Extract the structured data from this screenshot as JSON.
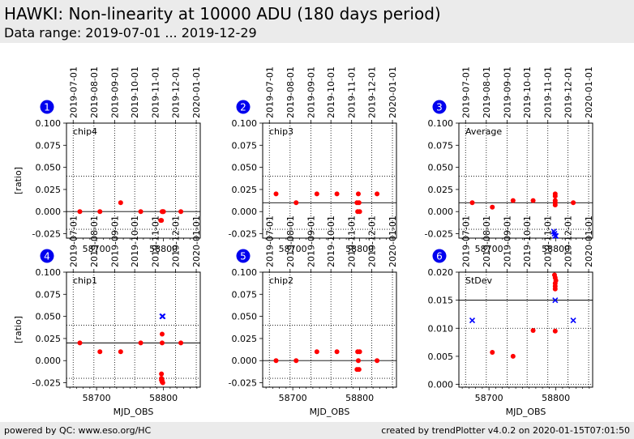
{
  "header": {
    "title": "HAWKI: Non-linearity at 10000 ADU (180 days period)",
    "subtitle": "Data range: 2019-07-01 ... 2019-12-29",
    "bg_color": "#ebebeb"
  },
  "footer": {
    "left": "powered by QC: www.eso.org/HC",
    "right": "created by trendPlotter v4.0.2 on 2020-01-15T07:01:50"
  },
  "colors": {
    "point": "#ff0000",
    "outlier": "#0000ff",
    "badge": "#0000ee"
  },
  "date_ticks": {
    "labels": [
      "2019-07-01",
      "2019-08-01",
      "2019-09-01",
      "2019-10-01",
      "2019-11-01",
      "2019-12-01",
      "2020-01-01"
    ],
    "mjd": [
      58665,
      58696,
      58727,
      58757,
      58788,
      58818,
      58849
    ]
  },
  "chart_data": [
    {
      "type": "scatter",
      "panel": "1",
      "label": "chip4",
      "ylabel": "[ratio]",
      "xlabel": "",
      "xlim": [
        58655,
        58855
      ],
      "ylim": [
        -0.03,
        0.1
      ],
      "yticks": [
        -0.025,
        0.0,
        0.025,
        0.05,
        0.075,
        0.1
      ],
      "yticklabels": [
        "-0.025",
        "0.000",
        "0.025",
        "0.050",
        "0.075",
        "0.100"
      ],
      "xticks": [
        58700,
        58800
      ],
      "xticklabels": [
        "58700",
        "58800"
      ],
      "ref_line": 0.0,
      "limit_lines": [
        0.04,
        -0.02
      ],
      "points": [
        [
          58675,
          0.0
        ],
        [
          58705,
          0.0
        ],
        [
          58736,
          0.01
        ],
        [
          58766,
          0.0
        ],
        [
          58796,
          -0.01
        ],
        [
          58797,
          -0.01
        ],
        [
          58798,
          0.0
        ],
        [
          58799,
          0.0
        ],
        [
          58800,
          0.0
        ],
        [
          58826,
          0.0
        ]
      ],
      "outliers": []
    },
    {
      "type": "scatter",
      "panel": "2",
      "label": "chip3",
      "ylabel": "",
      "xlabel": "",
      "xlim": [
        58655,
        58855
      ],
      "ylim": [
        -0.03,
        0.1
      ],
      "yticks": [
        -0.025,
        0.0,
        0.025,
        0.05,
        0.075,
        0.1
      ],
      "yticklabels": [
        "-0.025",
        "0.000",
        "0.025",
        "0.050",
        "0.075",
        "0.100"
      ],
      "xticks": [
        58700,
        58800
      ],
      "xticklabels": [
        "58700",
        "58800"
      ],
      "ref_line": 0.01,
      "limit_lines": [
        0.04,
        -0.02
      ],
      "points": [
        [
          58675,
          0.02
        ],
        [
          58705,
          0.01
        ],
        [
          58736,
          0.02
        ],
        [
          58766,
          0.02
        ],
        [
          58796,
          0.01
        ],
        [
          58797,
          0.0
        ],
        [
          58798,
          0.02
        ],
        [
          58799,
          0.01
        ],
        [
          58800,
          0.0
        ],
        [
          58826,
          0.02
        ]
      ],
      "outliers": []
    },
    {
      "type": "scatter",
      "panel": "3",
      "label": "Average",
      "ylabel": "",
      "xlabel": "",
      "xlim": [
        58655,
        58855
      ],
      "ylim": [
        -0.03,
        0.1
      ],
      "yticks": [
        -0.025,
        0.0,
        0.025,
        0.05,
        0.075,
        0.1
      ],
      "yticklabels": [
        "-0.025",
        "0.000",
        "0.025",
        "0.050",
        "0.075",
        "0.100"
      ],
      "xticks": [
        58700,
        58800
      ],
      "xticklabels": [
        "58700",
        "58800"
      ],
      "ref_line": 0.01,
      "limit_lines": [
        0.04,
        -0.02
      ],
      "points": [
        [
          58675,
          0.01
        ],
        [
          58705,
          0.005
        ],
        [
          58736,
          0.0125
        ],
        [
          58766,
          0.0125
        ],
        [
          58799,
          0.02
        ],
        [
          58799,
          0.0175
        ],
        [
          58799,
          0.0125
        ],
        [
          58799,
          0.01
        ],
        [
          58799,
          0.0075
        ],
        [
          58826,
          0.01
        ]
      ],
      "outliers": [
        [
          58797,
          -0.0225
        ],
        [
          58798,
          -0.025
        ],
        [
          58799,
          -0.0275
        ],
        [
          58800,
          -0.0275
        ]
      ]
    },
    {
      "type": "scatter",
      "panel": "4",
      "label": "chip1",
      "ylabel": "[ratio]",
      "xlabel": "MJD_OBS",
      "xlim": [
        58655,
        58855
      ],
      "ylim": [
        -0.03,
        0.1
      ],
      "yticks": [
        -0.025,
        0.0,
        0.025,
        0.05,
        0.075,
        0.1
      ],
      "yticklabels": [
        "-0.025",
        "0.000",
        "0.025",
        "0.050",
        "0.075",
        "0.100"
      ],
      "xticks": [
        58700,
        58800
      ],
      "xticklabels": [
        "58700",
        "58800"
      ],
      "ref_line": 0.02,
      "limit_lines": [
        0.04,
        -0.02
      ],
      "points": [
        [
          58675,
          0.02
        ],
        [
          58705,
          0.01
        ],
        [
          58736,
          0.01
        ],
        [
          58766,
          0.02
        ],
        [
          58798,
          0.03
        ],
        [
          58798,
          0.02
        ],
        [
          58797,
          -0.015
        ],
        [
          58797,
          -0.02
        ],
        [
          58797,
          -0.022
        ],
        [
          58798,
          -0.024
        ],
        [
          58799,
          -0.025
        ],
        [
          58798,
          -0.0225
        ],
        [
          58826,
          0.02
        ]
      ],
      "outliers": [
        [
          58798,
          0.05
        ],
        [
          58799,
          0.05
        ]
      ]
    },
    {
      "type": "scatter",
      "panel": "5",
      "label": "chip2",
      "ylabel": "",
      "xlabel": "MJD_OBS",
      "xlim": [
        58655,
        58855
      ],
      "ylim": [
        -0.03,
        0.1
      ],
      "yticks": [
        -0.025,
        0.0,
        0.025,
        0.05,
        0.075,
        0.1
      ],
      "yticklabels": [
        "-0.025",
        "0.000",
        "0.025",
        "0.050",
        "0.075",
        "0.100"
      ],
      "xticks": [
        58700,
        58800
      ],
      "xticklabels": [
        "58700",
        "58800"
      ],
      "ref_line": 0.0,
      "limit_lines": [
        0.04,
        -0.02
      ],
      "points": [
        [
          58675,
          0.0
        ],
        [
          58705,
          0.0
        ],
        [
          58736,
          0.01
        ],
        [
          58766,
          0.01
        ],
        [
          58796,
          -0.01
        ],
        [
          58797,
          0.01
        ],
        [
          58798,
          0.0
        ],
        [
          58799,
          -0.01
        ],
        [
          58800,
          0.01
        ],
        [
          58826,
          0.0
        ]
      ],
      "outliers": []
    },
    {
      "type": "scatter",
      "panel": "6",
      "label": "StDev",
      "ylabel": "",
      "xlabel": "MJD_OBS",
      "xlim": [
        58655,
        58855
      ],
      "ylim": [
        -0.0005,
        0.02
      ],
      "yticks": [
        0.0,
        0.005,
        0.01,
        0.015,
        0.02
      ],
      "yticklabels": [
        "0.000",
        "0.005",
        "0.010",
        "0.015",
        "0.020"
      ],
      "xticks": [
        58700,
        58800
      ],
      "xticklabels": [
        "58700",
        "58800"
      ],
      "ref_line": 0.015,
      "limit_lines": [
        0.01,
        0.0
      ],
      "points": [
        [
          58705,
          0.0057
        ],
        [
          58736,
          0.005
        ],
        [
          58766,
          0.0096
        ],
        [
          58799,
          0.0095
        ],
        [
          58798,
          0.0195
        ],
        [
          58799,
          0.019
        ],
        [
          58800,
          0.0185
        ],
        [
          58799,
          0.018
        ],
        [
          58799,
          0.0175
        ],
        [
          58799,
          0.017
        ]
      ],
      "outliers": [
        [
          58675,
          0.0114
        ],
        [
          58799,
          0.015
        ],
        [
          58826,
          0.0114
        ]
      ]
    }
  ]
}
